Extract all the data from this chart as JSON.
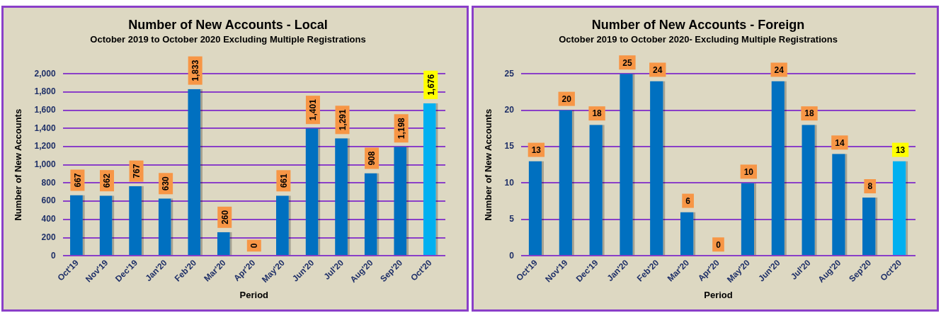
{
  "chart_data": [
    {
      "type": "bar",
      "title": "Number of New Accounts - Local",
      "subtitle": "October 2019 to October 2020 Excluding Multiple Registrations",
      "xlabel": "Period",
      "ylabel": "Number of New Accounts",
      "categories": [
        "Oct'19",
        "Nov'19",
        "Dec'19",
        "Jan'20",
        "Feb'20",
        "Mar'20",
        "Apr'20",
        "May'20",
        "Jun'20",
        "Jul'20",
        "Aug'20",
        "Sep'20",
        "Oct'20"
      ],
      "values": [
        667,
        662,
        767,
        630,
        1833,
        260,
        0,
        661,
        1401,
        1291,
        908,
        1198,
        1676
      ],
      "colors": [
        "#0070c0",
        "#0070c0",
        "#0070c0",
        "#0070c0",
        "#0070c0",
        "#0070c0",
        "#0070c0",
        "#0070c0",
        "#0070c0",
        "#0070c0",
        "#0070c0",
        "#0070c0",
        "#00b0f0"
      ],
      "value_labels": [
        "667",
        "662",
        "767",
        "630",
        "1,833",
        "260",
        "0",
        "661",
        "1,401",
        "1,291",
        "908",
        "1,198",
        "1,676"
      ],
      "ylim": [
        0,
        2000
      ],
      "yticks": [
        0,
        200,
        400,
        600,
        800,
        {
          "value": 1000,
          "label": "1,000"
        },
        {
          "value": 1200,
          "label": "1,200"
        },
        {
          "value": 1400,
          "label": "1,400"
        },
        {
          "value": 1600,
          "label": "1,600"
        },
        {
          "value": 1800,
          "label": "1,800"
        },
        {
          "value": 2000,
          "label": "2,000"
        }
      ],
      "grid": "y",
      "legend": false
    },
    {
      "type": "bar",
      "title": "Number of New Accounts - Foreign",
      "subtitle": "October 2019 to October 2020- Excluding Multiple Registrations",
      "xlabel": "Period",
      "ylabel": "Number of New Accounts",
      "categories": [
        "Oct'19",
        "Nov'19",
        "Dec'19",
        "Jan'20",
        "Feb'20",
        "Mar'20",
        "Apr'20",
        "May'20",
        "Jun'20",
        "Jul'20",
        "Aug'20",
        "Sep'20",
        "Oct'20"
      ],
      "values": [
        13,
        20,
        18,
        25,
        24,
        6,
        0,
        10,
        24,
        18,
        14,
        8,
        13
      ],
      "colors": [
        "#0070c0",
        "#0070c0",
        "#0070c0",
        "#0070c0",
        "#0070c0",
        "#0070c0",
        "#0070c0",
        "#0070c0",
        "#0070c0",
        "#0070c0",
        "#0070c0",
        "#0070c0",
        "#00b0f0"
      ],
      "ylim": [
        0,
        25
      ],
      "yticks": [
        0,
        5,
        10,
        15,
        20,
        25
      ],
      "grid": "y",
      "legend": false,
      "data_labels": true
    }
  ]
}
